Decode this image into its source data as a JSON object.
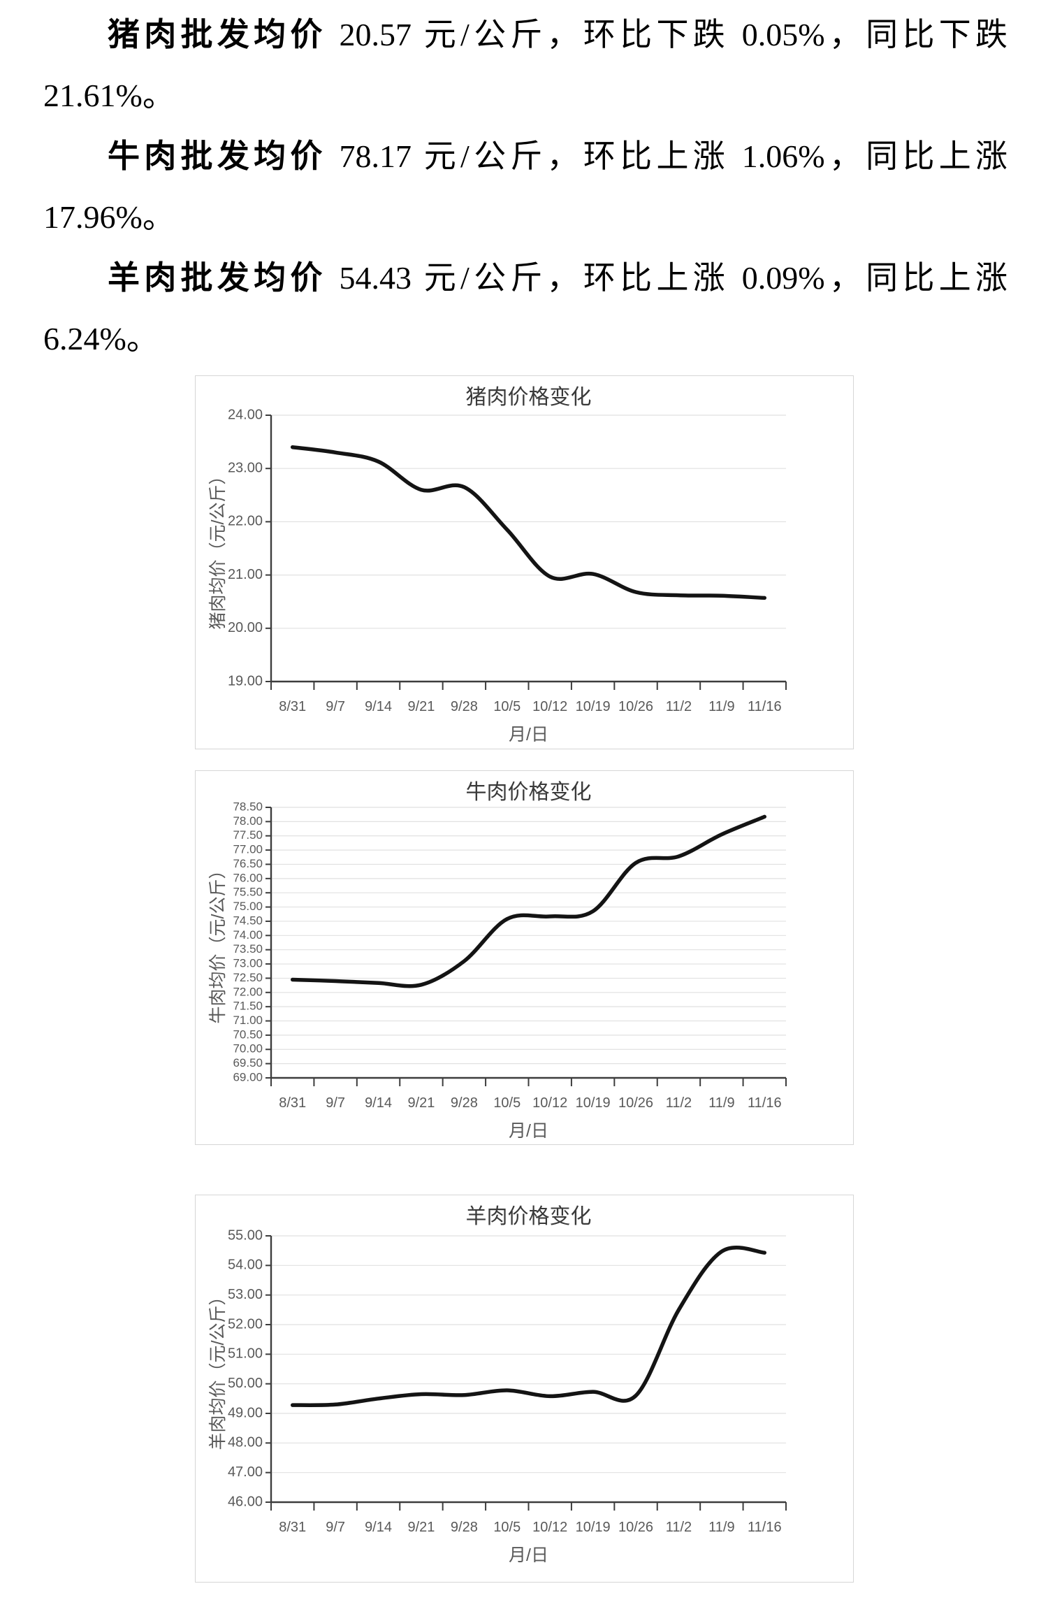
{
  "paragraphs": [
    {
      "lead": "猪肉批发均价",
      "rest": " 20.57 元/公斤，环比下跌 0.05%，同比下跌 21.61%。"
    },
    {
      "lead": "牛肉批发均价",
      "rest": " 78.17 元/公斤，环比上涨 1.06%，同比上涨 17.96%。"
    },
    {
      "lead": "羊肉批发均价",
      "rest": " 54.43 元/公斤，环比上涨 0.09%，同比上涨 6.24%。"
    }
  ],
  "colors": {
    "line": "#141414",
    "grid": "#e1e1e1",
    "axis": "#3d3d3d",
    "tick_text": "#595959",
    "title_text": "#3a3a3a",
    "box_border": "#d6d6d6"
  },
  "chart_data": [
    {
      "type": "line",
      "title": "猪肉价格变化",
      "xlabel": "月/日",
      "ylabel": "猪肉均价（元/公斤）",
      "categories": [
        "8/31",
        "9/7",
        "9/14",
        "9/21",
        "9/28",
        "10/5",
        "10/12",
        "10/19",
        "10/26",
        "11/2",
        "11/9",
        "11/16"
      ],
      "values": [
        23.4,
        23.3,
        23.13,
        22.6,
        22.65,
        21.85,
        20.97,
        21.02,
        20.68,
        20.62,
        20.61,
        20.57
      ],
      "ylim": [
        19.0,
        24.0
      ],
      "ytick_step": 1.0,
      "tick_decimals": 2,
      "grid": true,
      "legend": "none",
      "smooth": true
    },
    {
      "type": "line",
      "title": "牛肉价格变化",
      "xlabel": "月/日",
      "ylabel": "牛肉均价（元/公斤）",
      "categories": [
        "8/31",
        "9/7",
        "9/14",
        "9/21",
        "9/28",
        "10/5",
        "10/12",
        "10/19",
        "10/26",
        "11/2",
        "11/9",
        "11/16"
      ],
      "values": [
        72.45,
        72.4,
        72.33,
        72.27,
        73.1,
        74.58,
        74.67,
        74.85,
        76.55,
        76.78,
        77.55,
        78.17
      ],
      "ylim": [
        69.0,
        78.5
      ],
      "ytick_step": 0.5,
      "tick_decimals": 2,
      "grid": true,
      "legend": "none",
      "smooth": true
    },
    {
      "type": "line",
      "title": "羊肉价格变化",
      "xlabel": "月/日",
      "ylabel": "羊肉均价（元/公斤）",
      "categories": [
        "8/31",
        "9/7",
        "9/14",
        "9/21",
        "9/28",
        "10/5",
        "10/12",
        "10/19",
        "10/26",
        "11/2",
        "11/9",
        "11/16"
      ],
      "values": [
        49.28,
        49.3,
        49.5,
        49.65,
        49.62,
        49.78,
        49.58,
        49.73,
        49.6,
        52.5,
        54.47,
        54.43
      ],
      "ylim": [
        46.0,
        55.0
      ],
      "ytick_step": 1.0,
      "tick_decimals": 2,
      "grid": true,
      "legend": "none",
      "smooth": true
    }
  ]
}
